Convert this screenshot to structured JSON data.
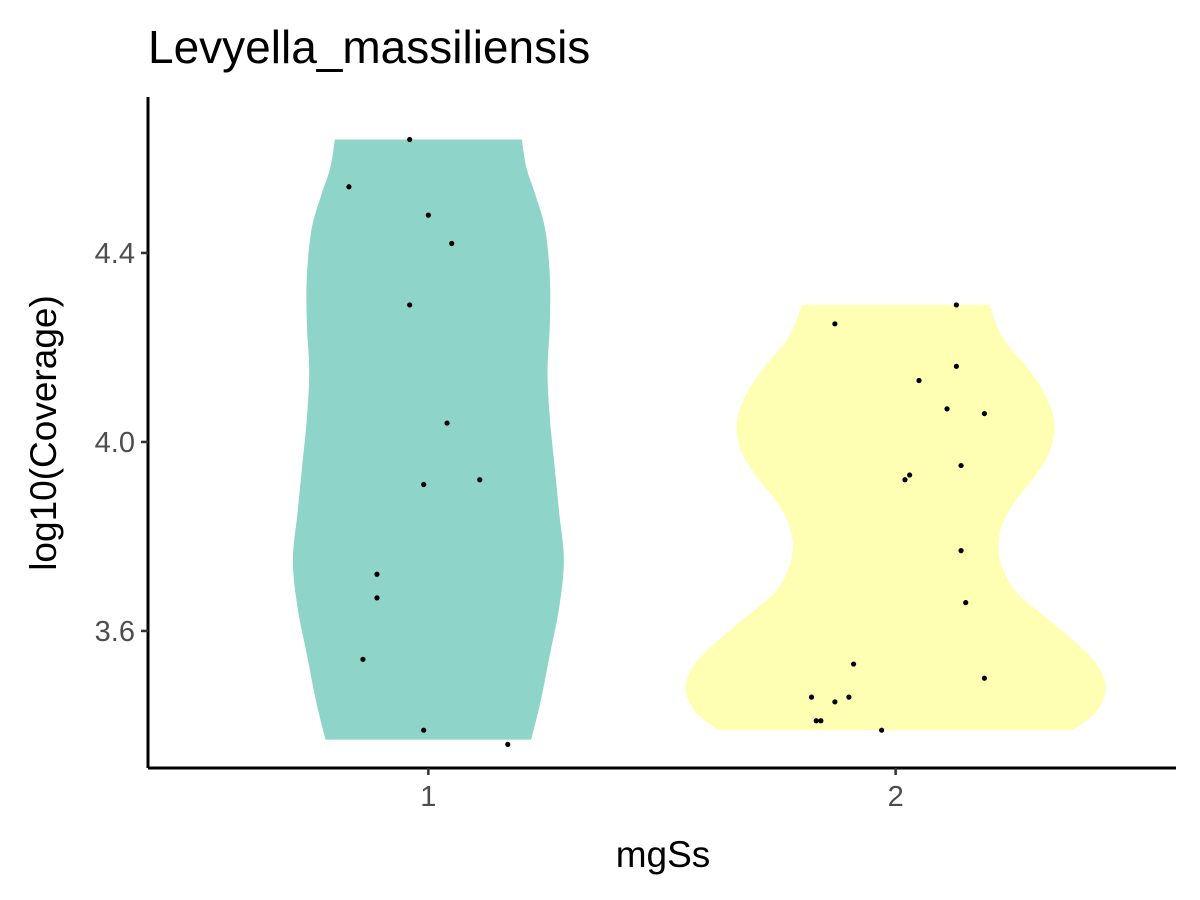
{
  "chart_data": {
    "type": "violin",
    "title": "Levyella_massiliensis",
    "xlabel": "mgSs",
    "ylabel": "log10(Coverage)",
    "categories": [
      "1",
      "2"
    ],
    "ylim": [
      3.31,
      4.73
    ],
    "yticks": [
      "3.6",
      "4.0",
      "4.4"
    ],
    "grid": false,
    "legend": "none",
    "colors": {
      "1": "#8ED4C8",
      "2": "#FFFFB3",
      "points": "#000000",
      "axis": "#000000"
    },
    "series": [
      {
        "category": "1",
        "range": [
          3.37,
          4.64
        ],
        "profile": [
          {
            "y": 3.37,
            "w": 0.22
          },
          {
            "y": 3.45,
            "w": 0.24
          },
          {
            "y": 3.55,
            "w": 0.26
          },
          {
            "y": 3.65,
            "w": 0.28
          },
          {
            "y": 3.75,
            "w": 0.29
          },
          {
            "y": 3.85,
            "w": 0.28
          },
          {
            "y": 3.95,
            "w": 0.27
          },
          {
            "y": 4.05,
            "w": 0.26
          },
          {
            "y": 4.15,
            "w": 0.255
          },
          {
            "y": 4.25,
            "w": 0.26
          },
          {
            "y": 4.35,
            "w": 0.26
          },
          {
            "y": 4.45,
            "w": 0.25
          },
          {
            "y": 4.52,
            "w": 0.23
          },
          {
            "y": 4.58,
            "w": 0.21
          },
          {
            "y": 4.64,
            "w": 0.2
          }
        ],
        "points": [
          {
            "x": 0.96,
            "y": 4.64
          },
          {
            "x": 0.83,
            "y": 4.54
          },
          {
            "x": 1.0,
            "y": 4.48
          },
          {
            "x": 1.05,
            "y": 4.42
          },
          {
            "x": 0.96,
            "y": 4.29
          },
          {
            "x": 1.04,
            "y": 4.04
          },
          {
            "x": 0.99,
            "y": 3.91
          },
          {
            "x": 1.11,
            "y": 3.92
          },
          {
            "x": 0.89,
            "y": 3.72
          },
          {
            "x": 0.89,
            "y": 3.67
          },
          {
            "x": 0.86,
            "y": 3.54
          },
          {
            "x": 0.99,
            "y": 3.39
          },
          {
            "x": 1.17,
            "y": 3.36
          }
        ]
      },
      {
        "category": "2",
        "range": [
          3.39,
          4.29
        ],
        "profile": [
          {
            "y": 3.39,
            "w": 0.38
          },
          {
            "y": 3.43,
            "w": 0.43
          },
          {
            "y": 3.48,
            "w": 0.45
          },
          {
            "y": 3.53,
            "w": 0.43
          },
          {
            "y": 3.58,
            "w": 0.38
          },
          {
            "y": 3.63,
            "w": 0.32
          },
          {
            "y": 3.68,
            "w": 0.26
          },
          {
            "y": 3.73,
            "w": 0.23
          },
          {
            "y": 3.78,
            "w": 0.22
          },
          {
            "y": 3.83,
            "w": 0.23
          },
          {
            "y": 3.88,
            "w": 0.26
          },
          {
            "y": 3.93,
            "w": 0.3
          },
          {
            "y": 3.98,
            "w": 0.33
          },
          {
            "y": 4.04,
            "w": 0.34
          },
          {
            "y": 4.1,
            "w": 0.32
          },
          {
            "y": 4.16,
            "w": 0.28
          },
          {
            "y": 4.22,
            "w": 0.23
          },
          {
            "y": 4.29,
            "w": 0.2
          }
        ],
        "points": [
          {
            "x": 2.13,
            "y": 4.29
          },
          {
            "x": 1.87,
            "y": 4.25
          },
          {
            "x": 2.13,
            "y": 4.16
          },
          {
            "x": 2.05,
            "y": 4.13
          },
          {
            "x": 2.11,
            "y": 4.07
          },
          {
            "x": 2.19,
            "y": 4.06
          },
          {
            "x": 2.14,
            "y": 3.95
          },
          {
            "x": 2.03,
            "y": 3.93
          },
          {
            "x": 2.02,
            "y": 3.92
          },
          {
            "x": 2.14,
            "y": 3.77
          },
          {
            "x": 2.15,
            "y": 3.66
          },
          {
            "x": 1.91,
            "y": 3.53
          },
          {
            "x": 2.19,
            "y": 3.5
          },
          {
            "x": 1.82,
            "y": 3.46
          },
          {
            "x": 1.9,
            "y": 3.46
          },
          {
            "x": 1.87,
            "y": 3.45
          },
          {
            "x": 1.83,
            "y": 3.41
          },
          {
            "x": 1.84,
            "y": 3.41
          },
          {
            "x": 1.97,
            "y": 3.39
          }
        ]
      }
    ]
  }
}
